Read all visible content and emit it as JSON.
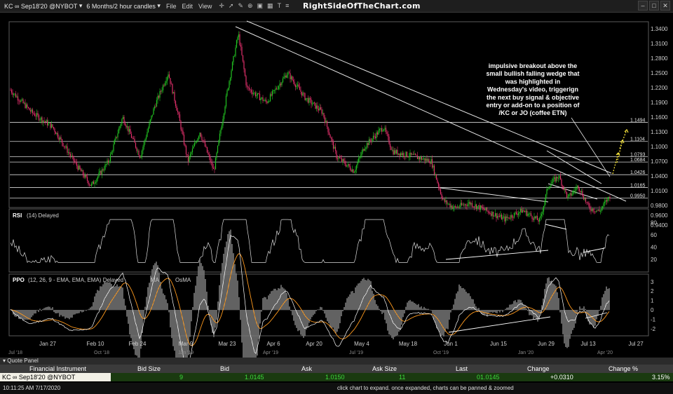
{
  "toolbar": {
    "symbol": "KC ∞ Sep18'20 @NYBOT",
    "period": "6 Months/2 hour candles",
    "menus": [
      "File",
      "Edit",
      "View"
    ],
    "watermark": "RightSideOfTheChart.com"
  },
  "price_axis": [
    "1.3400",
    "1.3100",
    "1.2800",
    "1.2500",
    "1.2200",
    "1.1900",
    "1.1600",
    "1.1300",
    "1.1000",
    "1.0700",
    "1.0400",
    "1.0100",
    "0.9800",
    "0.9600",
    "0.9400"
  ],
  "level_labels": [
    "1.1494",
    "1.1104",
    "1.0793",
    "1.0684",
    "1.0426",
    "1.0165",
    "0.9950"
  ],
  "annotation": [
    "impulsive breakout above the",
    "small bullish falling wedge that",
    "was highlighted in",
    "Wednesday's video, triggerign",
    "the next buy signal & objective",
    "entry or add-on to a position of",
    "/KC or JO (coffee ETN)"
  ],
  "rsi": {
    "label": "RSI",
    "params": "(14) Delayed",
    "ticks": [
      "80",
      "60",
      "40",
      "20"
    ]
  },
  "ppo": {
    "label": "PPO",
    "params": "(12, 26, 9 - EMA, EMA, EMA) Delayed",
    "ma_label": "MA",
    "osma_label": "OsMA",
    "ticks": [
      "3",
      "2",
      "1",
      "0",
      "-1",
      "-2"
    ]
  },
  "date_axis": [
    "Jan 27",
    "Feb 10",
    "Feb 24",
    "Mar 9",
    "Mar 23",
    "Apr 6",
    "Apr 20",
    "May 4",
    "May 18",
    "Jun 1",
    "Jun 15",
    "Jun 29",
    "Jul 13",
    "Jul 27"
  ],
  "month_axis": [
    "Jul '18",
    "Oct '18",
    "Jan '19",
    "Apr '19",
    "Jul '19",
    "Oct '19",
    "Jan '20",
    "Apr '20"
  ],
  "quote_panel": {
    "title": "Quote Panel",
    "headers": [
      "Financial Instrument",
      "Bid Size",
      "Bid",
      "Ask",
      "Ask Size",
      "Last",
      "Change",
      "Change %"
    ],
    "row": {
      "instrument": "KC ∞ Sep18'20 @NYBOT",
      "bid_size": "9",
      "bid": "1.0145",
      "ask": "1.0150",
      "ask_size": "11",
      "last": "01.0145",
      "change": "+0.0310",
      "change_pct": "3.15%"
    }
  },
  "status": {
    "time": "10:11:25 AM 7/17/2020",
    "hint": "click chart to expand. once expanded, charts can be panned & zoomed"
  },
  "colors": {
    "up": "#22c322",
    "down": "#e0306a",
    "ppo": "#ffffff",
    "ma": "#ff9a1e",
    "osma": "#7a7a7a",
    "arrows": "#ffeb3b"
  }
}
